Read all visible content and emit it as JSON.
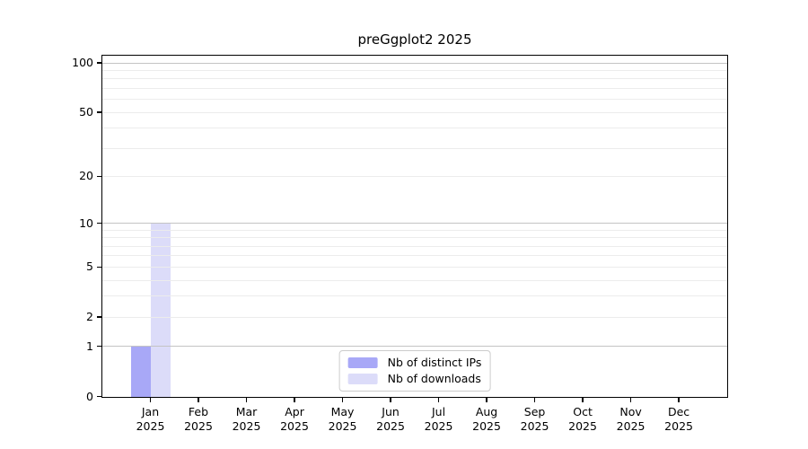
{
  "title": "preGgplot2 2025",
  "chart_data": {
    "type": "bar",
    "title": "preGgplot2 2025",
    "x_axis": {
      "months": [
        "Jan",
        "Feb",
        "Mar",
        "Apr",
        "May",
        "Jun",
        "Jul",
        "Aug",
        "Sep",
        "Oct",
        "Nov",
        "Dec"
      ],
      "year_label": "2025"
    },
    "y_axis": {
      "scale": "log1p",
      "tick_values": [
        0,
        1,
        2,
        5,
        10,
        20,
        50,
        100
      ],
      "major_gridlines": [
        1,
        10,
        100
      ],
      "minor_gridlines": [
        2,
        3,
        4,
        5,
        6,
        7,
        8,
        9,
        20,
        30,
        40,
        50,
        60,
        70,
        80,
        90
      ],
      "ylim": [
        0,
        113
      ]
    },
    "series": [
      {
        "name": "Nb of distinct IPs",
        "color": "#a8a8f7",
        "values": [
          1,
          0,
          0,
          0,
          0,
          0,
          0,
          0,
          0,
          0,
          0,
          0
        ]
      },
      {
        "name": "Nb of downloads",
        "color": "#dcdcf9",
        "values": [
          10,
          0,
          0,
          0,
          0,
          0,
          0,
          0,
          0,
          0,
          0,
          0
        ]
      }
    ],
    "legend": {
      "position": "bottom-center",
      "entries": [
        "Nb of distinct IPs",
        "Nb of downloads"
      ]
    },
    "grid": true
  },
  "colors": {
    "bar_distinct_ips": "#a8a8f7",
    "bar_downloads": "#dcdcf9",
    "grid_major": "#c4c4c4",
    "grid_minor": "#ececec",
    "axis": "#000000",
    "legend_border": "#cccccc",
    "text": "#000000"
  }
}
